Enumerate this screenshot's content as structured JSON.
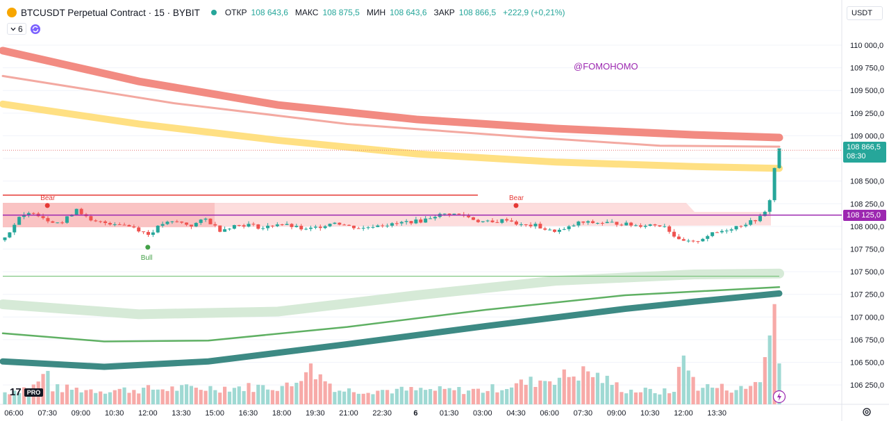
{
  "header": {
    "title": "BTCUSDT Perpetual Contract · 15 · BYBIT",
    "open_label": "ОТКР",
    "open_value": "108 643,6",
    "high_label": "МАКС",
    "high_value": "108 875,5",
    "low_label": "МИН",
    "low_value": "108 643,6",
    "close_label": "ЗАКР",
    "close_value": "108 866,5",
    "change": "+222,9 (+0,21%)"
  },
  "indicators": {
    "count": "6"
  },
  "currency": "USDT",
  "watermark": "@FOMOHOMO",
  "logo": {
    "text": "17",
    "badge": "PRO"
  },
  "price_tags": {
    "last_price": "108 866,5",
    "countdown": "08:30",
    "level_price": "108 125,0"
  },
  "colors": {
    "up": "#26a69a",
    "down": "#ef5350",
    "vol_up": "#9fd9d3",
    "vol_down": "#f7aaa8",
    "bear_zone": "#fbc7c7",
    "level_line": "#9c27b0",
    "ribbon_red": "#f28b82",
    "ribbon_yellow": "#ffe083",
    "ribbon_teal": "#3d8a84",
    "ribbon_lightgreen": "#d6ead7"
  },
  "chart_data": {
    "type": "candlestick",
    "symbol": "BTCUSDT",
    "timeframe": "15",
    "exchange": "BYBIT",
    "y_axis": {
      "ticks": [
        106250,
        106500,
        106750,
        107000,
        107250,
        107500,
        107750,
        108000,
        108250,
        108500,
        108750,
        109000,
        109250,
        109500,
        109750,
        110000
      ],
      "tick_labels": [
        "106 250,0",
        "106 500,0",
        "106 750,0",
        "107 000,0",
        "107 250,0",
        "107 500,0",
        "107 750,0",
        "108 000,0",
        "108 250,0",
        "108 500,0",
        "108 750,0",
        "109 000,0",
        "109 250,0",
        "109 500,0",
        "109 750,0",
        "110 000,0"
      ],
      "range": [
        106130,
        110130
      ]
    },
    "x_axis": {
      "labels": [
        "06:00",
        "07:30",
        "09:00",
        "10:30",
        "12:00",
        "13:30",
        "15:00",
        "16:30",
        "18:00",
        "19:30",
        "21:00",
        "22:30",
        "6",
        "01:30",
        "03:00",
        "04:30",
        "06:00",
        "07:30",
        "09:00",
        "10:30",
        "12:00",
        "13:30"
      ]
    },
    "last_price": 108866.5,
    "horizontal_level": 108125.0,
    "annotations": [
      {
        "text": "Bear",
        "x": "07:30",
        "y": 108230
      },
      {
        "text": "Bear",
        "x": "04:30",
        "y": 108230
      },
      {
        "text": "Bull",
        "x": "12:00",
        "y": 107770
      }
    ],
    "close_anchors": [
      [
        0,
        107880
      ],
      [
        3,
        108090
      ],
      [
        6,
        108160
      ],
      [
        9,
        108070
      ],
      [
        12,
        108040
      ],
      [
        15,
        108200
      ],
      [
        18,
        108050
      ],
      [
        21,
        108040
      ],
      [
        24,
        108030
      ],
      [
        27,
        107990
      ],
      [
        30,
        107910
      ],
      [
        33,
        108030
      ],
      [
        36,
        108050
      ],
      [
        39,
        108010
      ],
      [
        42,
        108080
      ],
      [
        45,
        107960
      ],
      [
        48,
        108010
      ],
      [
        51,
        108020
      ],
      [
        54,
        107980
      ],
      [
        57,
        108030
      ],
      [
        60,
        108000
      ],
      [
        63,
        107960
      ],
      [
        66,
        108000
      ],
      [
        69,
        108050
      ],
      [
        72,
        108000
      ],
      [
        75,
        107980
      ],
      [
        78,
        108020
      ],
      [
        81,
        108020
      ],
      [
        84,
        108050
      ],
      [
        87,
        108060
      ],
      [
        90,
        108120
      ],
      [
        93,
        108140
      ],
      [
        96,
        108120
      ],
      [
        99,
        108060
      ],
      [
        102,
        108040
      ],
      [
        105,
        108080
      ],
      [
        108,
        108010
      ],
      [
        111,
        108010
      ],
      [
        114,
        107950
      ],
      [
        117,
        107960
      ],
      [
        120,
        108040
      ],
      [
        123,
        108040
      ],
      [
        126,
        108040
      ],
      [
        129,
        108030
      ],
      [
        132,
        108010
      ],
      [
        135,
        108020
      ],
      [
        138,
        108010
      ],
      [
        141,
        107840
      ],
      [
        144,
        107820
      ],
      [
        147,
        107900
      ],
      [
        150,
        107950
      ],
      [
        153,
        108000
      ],
      [
        156,
        108050
      ],
      [
        158,
        108100
      ],
      [
        159,
        108150
      ],
      [
        160,
        108300
      ],
      [
        161,
        108640
      ],
      [
        162,
        108866.5
      ]
    ],
    "volume_relative": [
      [
        0,
        0.12
      ],
      [
        6,
        0.18
      ],
      [
        9,
        0.32
      ],
      [
        10,
        0.16
      ],
      [
        20,
        0.14
      ],
      [
        40,
        0.16
      ],
      [
        60,
        0.18
      ],
      [
        63,
        0.38
      ],
      [
        70,
        0.14
      ],
      [
        100,
        0.14
      ],
      [
        122,
        0.32
      ],
      [
        130,
        0.14
      ],
      [
        140,
        0.12
      ],
      [
        141,
        0.48
      ],
      [
        145,
        0.18
      ],
      [
        155,
        0.15
      ],
      [
        158,
        0.26
      ],
      [
        159,
        0.45
      ],
      [
        160,
        0.65
      ],
      [
        161,
        1.0
      ],
      [
        162,
        0.58
      ]
    ]
  }
}
